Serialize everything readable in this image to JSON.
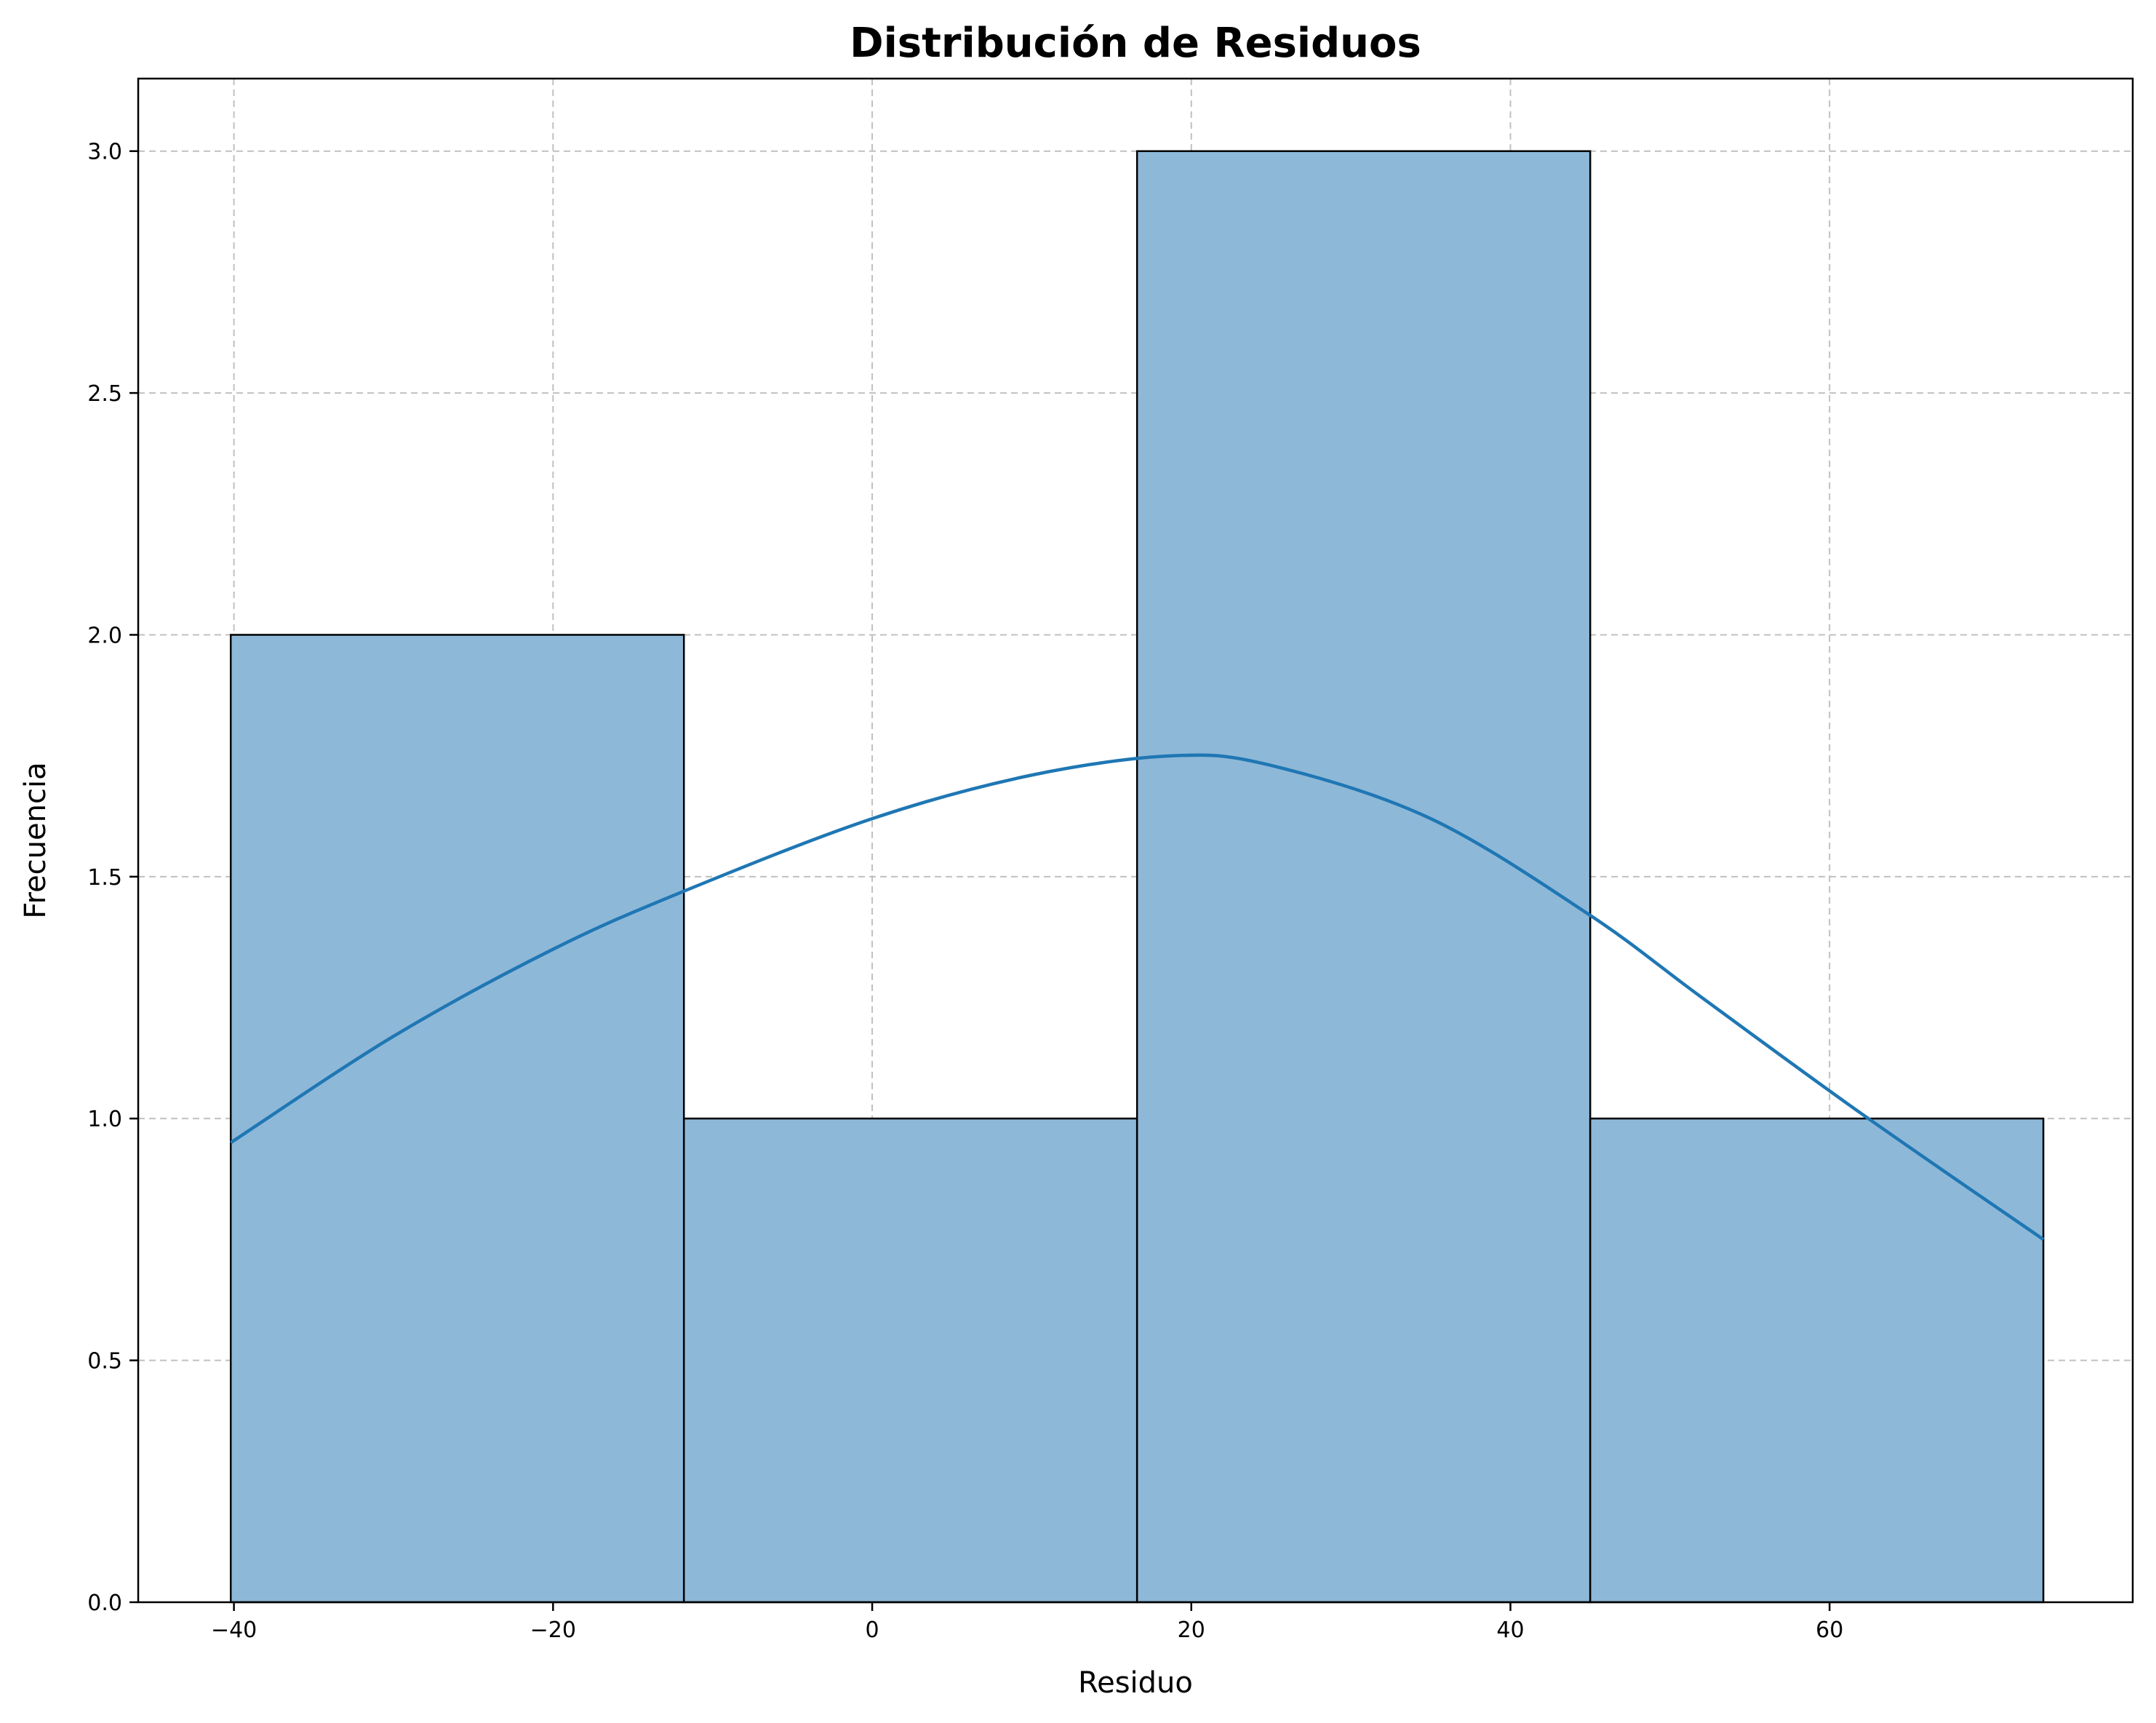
{
  "chart_data": {
    "type": "histogram",
    "title": "Distribución de Residuos",
    "xlabel": "Residuo",
    "ylabel": "Frecuencia",
    "xlim": [
      -46.0,
      79.0
    ],
    "ylim": [
      0,
      3.15
    ],
    "xticks": [
      -40,
      -20,
      0,
      20,
      40,
      60
    ],
    "xtick_labels": [
      "−40",
      "−20",
      "0",
      "20",
      "40",
      "60"
    ],
    "yticks": [
      0.0,
      0.5,
      1.0,
      1.5,
      2.0,
      2.5,
      3.0
    ],
    "ytick_labels": [
      "0.0",
      "0.5",
      "1.0",
      "1.5",
      "2.0",
      "2.5",
      "3.0"
    ],
    "grid": true,
    "bins": [
      {
        "x0": -40.2,
        "x1": -11.8,
        "count": 2
      },
      {
        "x0": -11.8,
        "x1": 16.6,
        "count": 1
      },
      {
        "x0": 16.6,
        "x1": 45.0,
        "count": 3
      },
      {
        "x0": 45.0,
        "x1": 73.4,
        "count": 1
      }
    ],
    "kde": {
      "x": [
        -40.2,
        -30,
        -20,
        -11.8,
        0,
        10,
        18.9,
        25,
        35,
        45,
        52,
        62,
        73.4
      ],
      "y": [
        0.95,
        1.17,
        1.35,
        1.47,
        1.62,
        1.71,
        1.75,
        1.73,
        1.62,
        1.42,
        1.25,
        1.01,
        0.75
      ]
    },
    "colors": {
      "bar_fill": "#8eb8d8",
      "bar_edge": "#000000",
      "kde_line": "#1f77b4",
      "grid": "#c0c0c0"
    }
  }
}
